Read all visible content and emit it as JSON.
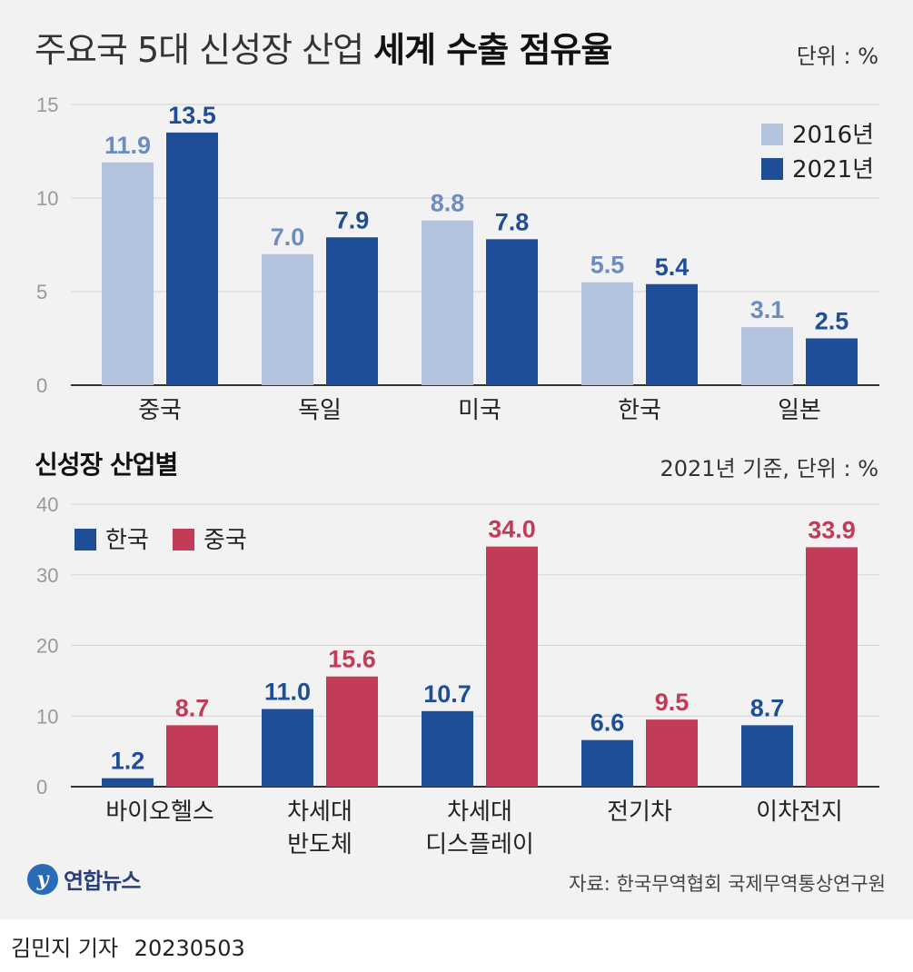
{
  "header": {
    "title_light": "주요국 5대 신성장 산업",
    "title_bold": "세계 수출 점유율",
    "unit": "단위 : %"
  },
  "section2": {
    "title": "신성장 산업별",
    "unit": "2021년 기준, 단위 : %"
  },
  "footer": {
    "logo_mark": "y",
    "logo_text": "연합뉴스",
    "source": "자료: 한국무역협회 국제무역통상연구원"
  },
  "byline": {
    "author": "김민지 기자",
    "date": "20230503"
  },
  "colors": {
    "light_blue": "#b3c3dd",
    "light_blue_label": "#6d8cc0",
    "dark_blue": "#1f4e99",
    "red": "#c23b57"
  },
  "chart_data": [
    {
      "type": "bar",
      "title": "주요국 5대 신성장 산업 세계 수출 점유율",
      "categories": [
        "중국",
        "독일",
        "미국",
        "한국",
        "일본"
      ],
      "series": [
        {
          "name": "2016년",
          "values": [
            11.9,
            7.0,
            8.8,
            5.5,
            3.1
          ],
          "labels": [
            "11.9",
            "7.0",
            "8.8",
            "5.5",
            "3.1"
          ]
        },
        {
          "name": "2021년",
          "values": [
            13.5,
            7.9,
            7.8,
            5.4,
            2.5
          ],
          "labels": [
            "13.5",
            "7.9",
            "7.8",
            "5.4",
            "2.5"
          ]
        }
      ],
      "ylim": [
        0,
        15
      ],
      "yticks": [
        "0",
        "5",
        "10",
        "15"
      ],
      "legend": "top-right",
      "grid": true
    },
    {
      "type": "bar",
      "title": "신성장 산업별",
      "categories": [
        [
          "바이오헬스"
        ],
        [
          "차세대",
          "반도체"
        ],
        [
          "차세대",
          "디스플레이"
        ],
        [
          "전기차"
        ],
        [
          "이차전지"
        ]
      ],
      "series": [
        {
          "name": "한국",
          "values": [
            1.2,
            11.0,
            10.7,
            6.6,
            8.7
          ],
          "labels": [
            "1.2",
            "11.0",
            "10.7",
            "6.6",
            "8.7"
          ]
        },
        {
          "name": "중국",
          "values": [
            8.7,
            15.6,
            34.0,
            9.5,
            33.9
          ],
          "labels": [
            "8.7",
            "15.6",
            "34.0",
            "9.5",
            "33.9"
          ]
        }
      ],
      "ylim": [
        0,
        40
      ],
      "yticks": [
        "0",
        "10",
        "20",
        "30",
        "40"
      ],
      "legend": "top-left",
      "grid": true
    }
  ]
}
